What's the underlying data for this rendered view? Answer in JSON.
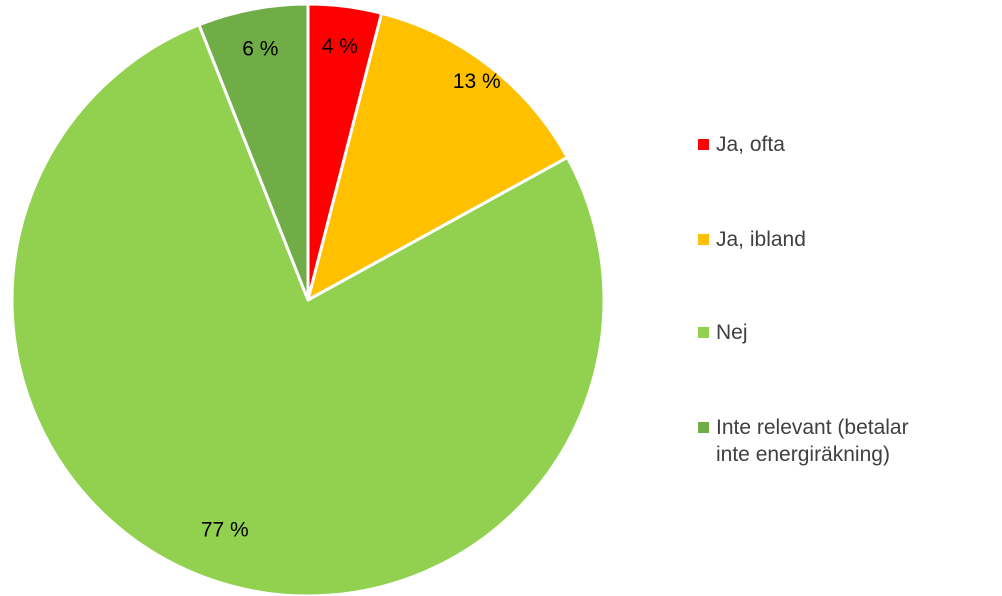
{
  "chart_data": {
    "type": "pie",
    "categories": [
      "Ja, ofta",
      "Ja, ibland",
      "Nej",
      "Inte relevant (betalar inte energiräkning)"
    ],
    "values": [
      4,
      13,
      77,
      6
    ],
    "value_labels": [
      "4 %",
      "13 %",
      "77 %",
      "6 %"
    ],
    "colors": [
      "#ff0000",
      "#ffc000",
      "#92d050",
      "#70ad47"
    ],
    "legend": "right"
  }
}
